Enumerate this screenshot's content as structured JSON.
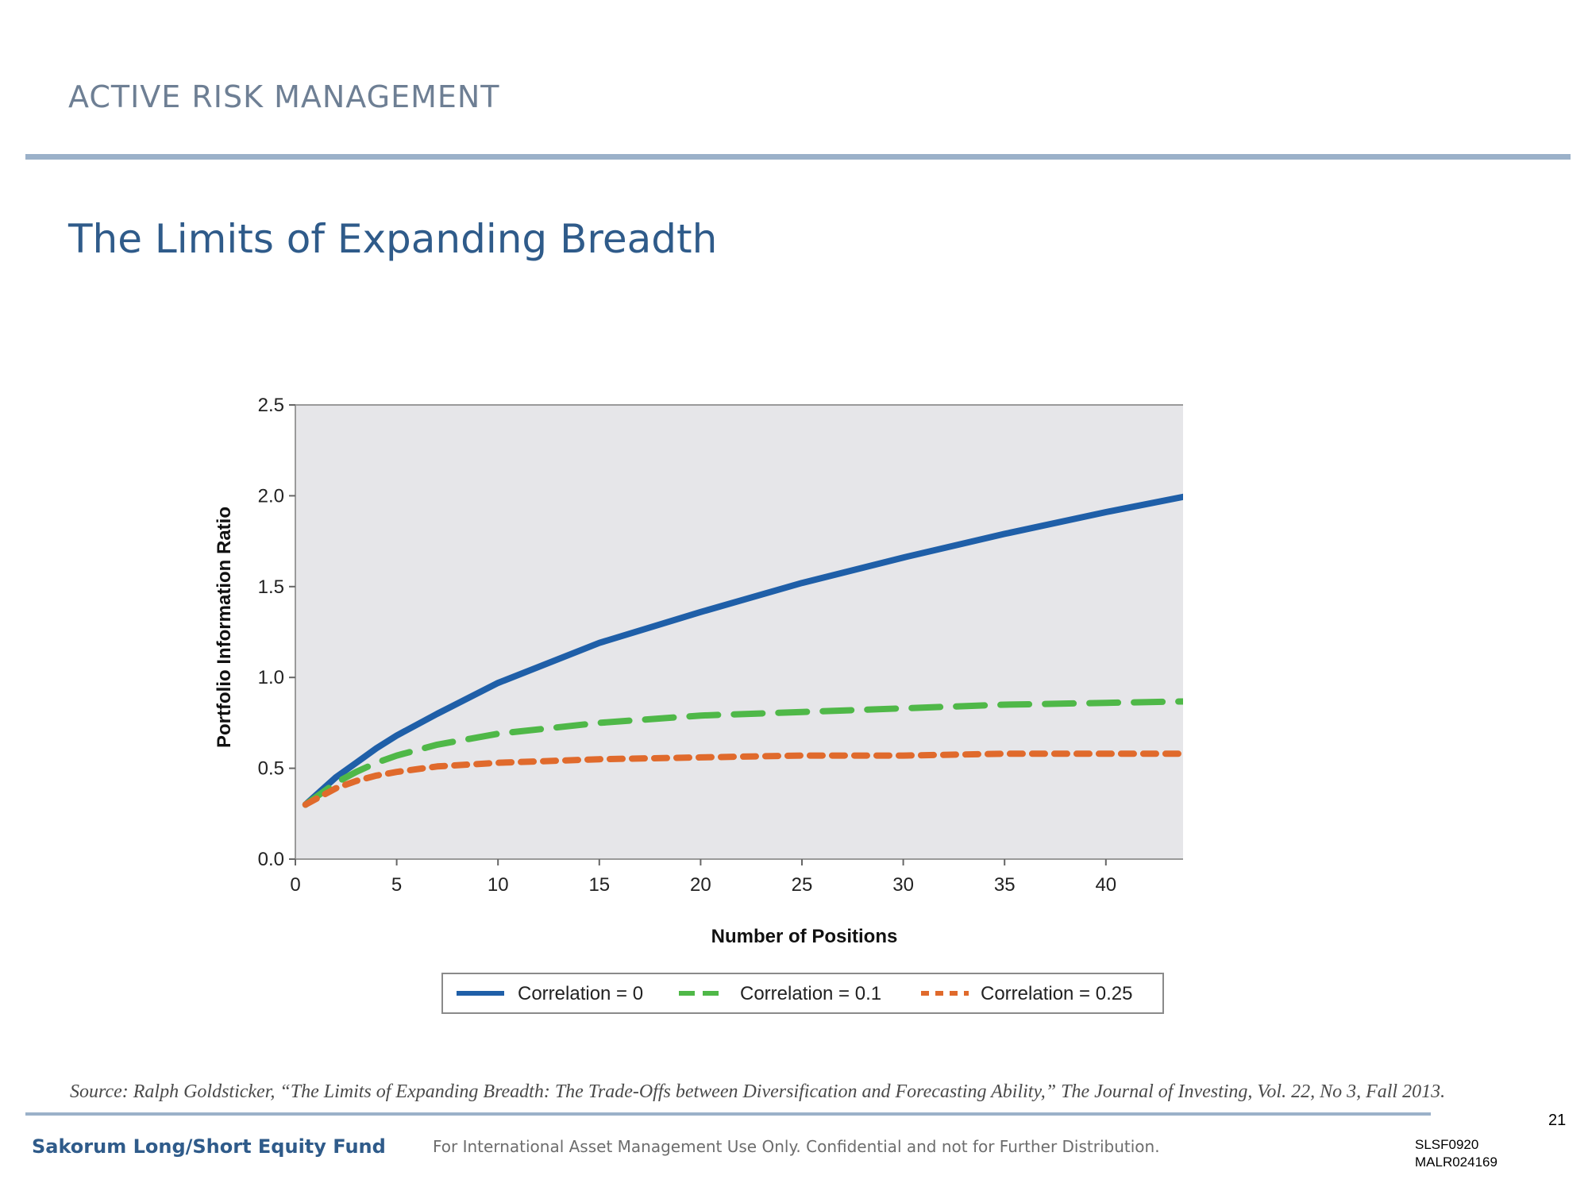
{
  "header": {
    "section_title": "ACTIVE RISK MANAGEMENT",
    "page_title": "The Limits of Expanding Breadth"
  },
  "chart_data": {
    "type": "line",
    "title": "",
    "xlabel": "Number of Positions",
    "ylabel": "Portfolio Information Ratio",
    "xlim": [
      0,
      50
    ],
    "ylim": [
      0,
      2.5
    ],
    "x_ticks": [
      "0",
      "5",
      "10",
      "15",
      "20",
      "25",
      "30",
      "35",
      "40",
      "45"
    ],
    "y_ticks": [
      "0.0",
      "0.5",
      "1.0",
      "1.5",
      "2.0",
      "2.5"
    ],
    "grid": false,
    "legend_position": "bottom",
    "x": [
      0.5,
      1,
      2,
      3,
      4,
      5,
      7,
      10,
      15,
      20,
      25,
      30,
      35,
      40,
      45,
      49.6
    ],
    "series": [
      {
        "name": "Correlation = 0",
        "color": "#1f5fa8",
        "style": "solid",
        "values": [
          0.3,
          0.35,
          0.45,
          0.53,
          0.61,
          0.68,
          0.8,
          0.97,
          1.19,
          1.36,
          1.52,
          1.66,
          1.79,
          1.91,
          2.02,
          2.12
        ]
      },
      {
        "name": "Correlation = 0.1",
        "color": "#4fb848",
        "style": "long-dash",
        "values": [
          0.3,
          0.34,
          0.42,
          0.48,
          0.53,
          0.57,
          0.63,
          0.69,
          0.75,
          0.79,
          0.81,
          0.83,
          0.85,
          0.86,
          0.87,
          0.87
        ]
      },
      {
        "name": "Correlation = 0.25",
        "color": "#e06a2c",
        "style": "short-dash",
        "values": [
          0.3,
          0.33,
          0.39,
          0.43,
          0.46,
          0.48,
          0.51,
          0.53,
          0.55,
          0.56,
          0.57,
          0.57,
          0.58,
          0.58,
          0.58,
          0.58
        ]
      }
    ]
  },
  "source_note": "Source: Ralph Goldsticker, “The Limits of Expanding Breadth: The Trade-Offs between Diversification and Forecasting Ability,” The Journal of Investing, Vol. 22, No 3, Fall 2013.",
  "footer": {
    "page_number": "21",
    "fund_name": "Sakorum Long/Short Equity Fund",
    "disclaimer": "For International Asset Management Use Only. Confidential and not for Further Distribution.",
    "code_line1": "SLSF0920",
    "code_line2": "MALR024169"
  }
}
